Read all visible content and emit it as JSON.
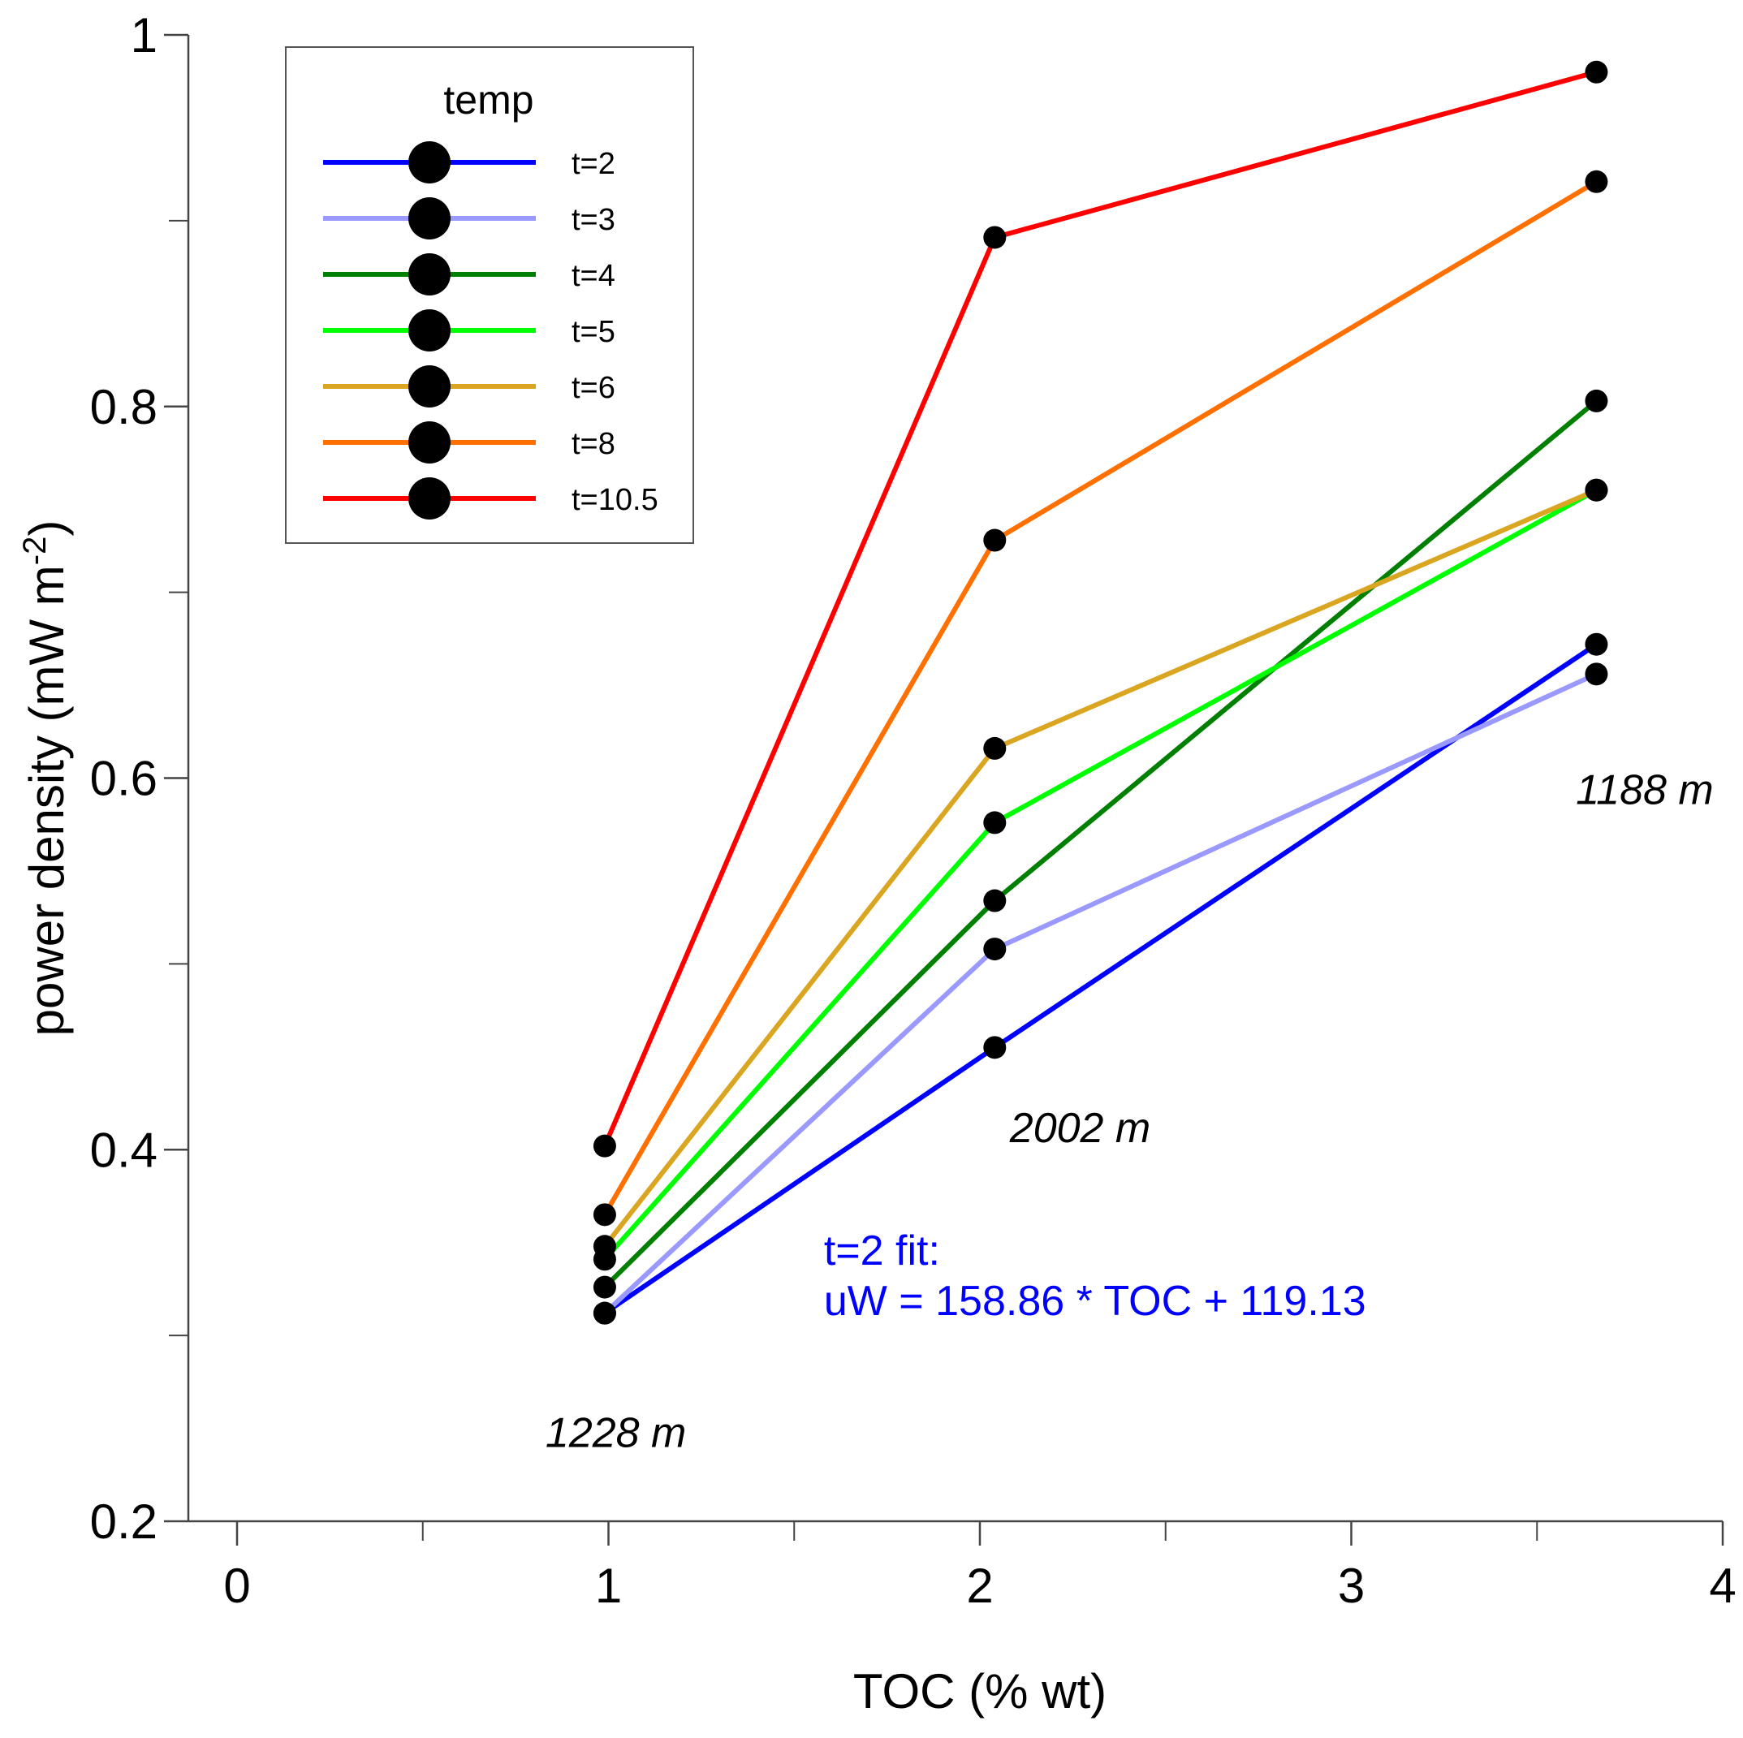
{
  "chart_data": {
    "type": "line",
    "title": "",
    "xlabel": "TOC (% wt)",
    "ylabel": "power density (mW m",
    "ylabel_sup": "-2",
    "ylabel_close": ")",
    "xlim": [
      0,
      4
    ],
    "ylim": [
      0.2,
      1.0
    ],
    "xticks": [
      {
        "value": 0,
        "label": "0"
      },
      {
        "value": 1,
        "label": "1"
      },
      {
        "value": 2,
        "label": "2"
      },
      {
        "value": 3,
        "label": "3"
      },
      {
        "value": 4,
        "label": "4"
      }
    ],
    "xticks_minor": [
      0.5,
      1.5,
      2.5,
      3.5
    ],
    "yticks": [
      {
        "value": 0.2,
        "label": "0.2"
      },
      {
        "value": 0.4,
        "label": "0.4"
      },
      {
        "value": 0.6,
        "label": "0.6"
      },
      {
        "value": 0.8,
        "label": "0.8"
      },
      {
        "value": 1.0,
        "label": "1"
      }
    ],
    "yticks_minor": [
      0.3,
      0.5,
      0.7,
      0.9
    ],
    "grid": false,
    "legend": {
      "title": "temp",
      "position": "top-left"
    },
    "x": [
      0.99,
      2.04,
      3.66
    ],
    "series": [
      {
        "name": "t=2",
        "color": "#0000ff",
        "values": [
          0.312,
          0.455,
          0.672
        ]
      },
      {
        "name": "t=3",
        "color": "#9999ff",
        "values": [
          0.312,
          0.508,
          0.656
        ]
      },
      {
        "name": "t=4",
        "color": "#008000",
        "values": [
          0.326,
          0.534,
          0.803
        ]
      },
      {
        "name": "t=5",
        "color": "#00ff00",
        "values": [
          0.341,
          0.576,
          0.755
        ]
      },
      {
        "name": "t=6",
        "color": "#daa520",
        "values": [
          0.348,
          0.616,
          0.755
        ]
      },
      {
        "name": "t=8",
        "color": "#ff7000",
        "values": [
          0.365,
          0.728,
          0.921
        ]
      },
      {
        "name": "t=10.5",
        "color": "#ff0000",
        "values": [
          0.402,
          0.891,
          0.98
        ]
      }
    ],
    "annotations": [
      {
        "text": "1228 m",
        "x": 1.02,
        "y": 0.24
      },
      {
        "text": "2002 m",
        "x": 2.27,
        "y": 0.404
      },
      {
        "text": "1188 m",
        "x": 3.79,
        "y": 0.586
      }
    ],
    "fit": {
      "color": "#0000ff",
      "x": 1.58,
      "y": 0.338,
      "line1": "t=2 fit:",
      "line2": "uW = 158.86 * TOC + 119.13"
    }
  }
}
